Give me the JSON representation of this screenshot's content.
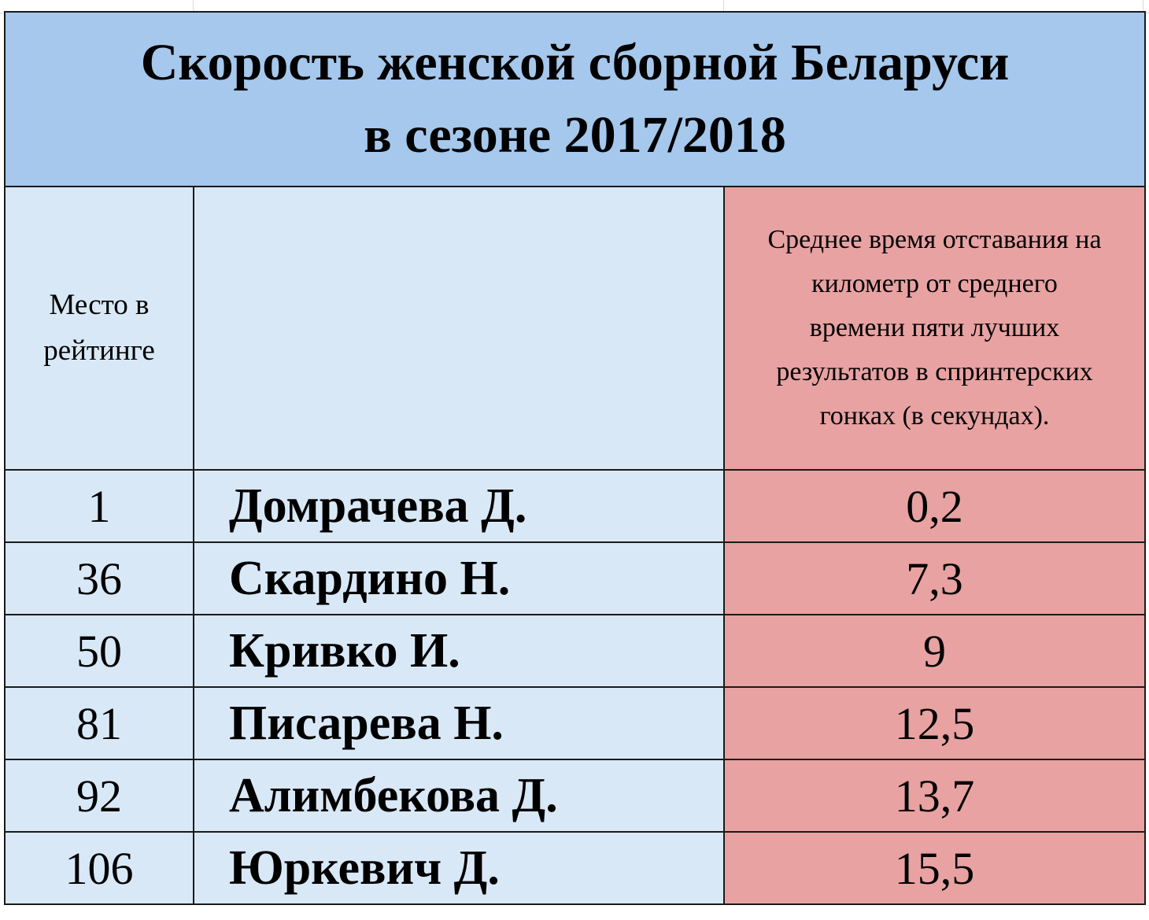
{
  "chart_data": {
    "type": "table",
    "title": "Скорость женской сборной Беларуси",
    "subtitle": "в сезоне 2017/2018",
    "columns": [
      "Место в рейтинге",
      "",
      "Среднее время отставания на километр от среднего времени пяти лучших результатов в спринтерских гонках (в секундах)."
    ],
    "rank_header_lines": [
      "Место в",
      "рейтинге"
    ],
    "value_header_lines": [
      "Среднее время отставания на",
      "километр от среднего",
      "времени пяти лучших",
      "результатов в спринтерских",
      "гонках (в секундах)."
    ],
    "rows": [
      {
        "rank": "1",
        "name": "Домрачева Д.",
        "value": "0,2"
      },
      {
        "rank": "36",
        "name": "Скардино Н.",
        "value": "7,3"
      },
      {
        "rank": "50",
        "name": "Кривко И.",
        "value": "9"
      },
      {
        "rank": "81",
        "name": "Писарева Н.",
        "value": "12,5"
      },
      {
        "rank": "92",
        "name": "Алимбекова Д.",
        "value": "13,7"
      },
      {
        "rank": "106",
        "name": "Юркевич Д.",
        "value": "15,5"
      }
    ],
    "colors": {
      "title_background": "#a5c8ec",
      "rank_name_background": "#d9e8f6",
      "value_background": "#e8a2a2",
      "border": "#1a1a1a"
    }
  }
}
